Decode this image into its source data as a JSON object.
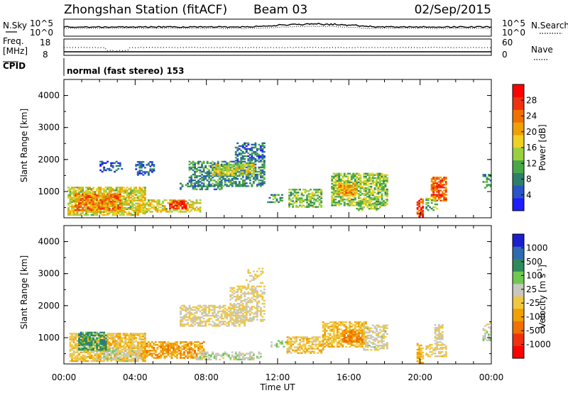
{
  "header": {
    "station": "Zhongshan Station (fitACF)",
    "beam": "Beam 03",
    "date": "02/Sep/2015"
  },
  "strip_labels": {
    "nsky": "N.Sky",
    "nsearch": "N.Search",
    "freq_line1": "Freq.",
    "freq_line2": "[MHz]",
    "nave": "Nave",
    "cpid": "CPID",
    "nsky_top": "10^5",
    "nsky_bottom": "10^0",
    "nsearch_top": "10^5",
    "nsearch_bottom": "10^0",
    "freq_top": "18",
    "freq_bottom": "8",
    "nave_top": "60",
    "nave_bottom": "0",
    "cpid_text": "normal (fast stereo) 153"
  },
  "colors": {
    "power": [
      "#1d1dff",
      "#2a55c8",
      "#2e7f6a",
      "#48a848",
      "#9ad040",
      "#f0d020",
      "#f0a000",
      "#f07000",
      "#f03010",
      "#ff0000"
    ],
    "velocity": [
      "#ff0000",
      "#f03010",
      "#f07000",
      "#f0a000",
      "#f0c840",
      "#c8c8c0",
      "#70c850",
      "#2e8a5a",
      "#2e6ab0",
      "#1d1dd0"
    ]
  },
  "chart_data": [
    {
      "type": "heatmap",
      "panel": "power",
      "ylabel": "Slant Range [km]",
      "yticks": [
        "1000",
        "2000",
        "3000",
        "4000"
      ],
      "ylim": [
        180,
        4500
      ],
      "colorbar_label": "Power [dB]",
      "colorbar_ticks": [
        "4",
        "8",
        "12",
        "16",
        "20",
        "24",
        "28"
      ],
      "colorbar_range": [
        0,
        32
      ],
      "regions": [
        {
          "t": [
            0.2,
            4.6
          ],
          "r": [
            250,
            1150
          ],
          "v": 17,
          "d": 0.75
        },
        {
          "t": [
            0.6,
            3.2
          ],
          "r": [
            400,
            900
          ],
          "v": 23,
          "d": 0.75
        },
        {
          "t": [
            4.3,
            7.6
          ],
          "r": [
            350,
            750
          ],
          "v": 17,
          "d": 0.55
        },
        {
          "t": [
            5.9,
            6.8
          ],
          "r": [
            450,
            680
          ],
          "v": 27,
          "d": 0.8
        },
        {
          "t": [
            2.0,
            3.3
          ],
          "r": [
            1600,
            1950
          ],
          "v": 4,
          "d": 0.45
        },
        {
          "t": [
            4.0,
            5.0
          ],
          "r": [
            1500,
            1950
          ],
          "v": 6,
          "d": 0.45
        },
        {
          "t": [
            7.0,
            11.2
          ],
          "r": [
            1150,
            1950
          ],
          "v": 9,
          "d": 0.55
        },
        {
          "t": [
            8.3,
            10.6
          ],
          "r": [
            1500,
            1850
          ],
          "v": 16,
          "d": 0.65
        },
        {
          "t": [
            9.6,
            11.2
          ],
          "r": [
            1950,
            2500
          ],
          "v": 7,
          "d": 0.55
        },
        {
          "t": [
            6.5,
            8.8
          ],
          "r": [
            1050,
            1250
          ],
          "v": 9,
          "d": 0.45
        },
        {
          "t": [
            11.4,
            12.2
          ],
          "r": [
            650,
            900
          ],
          "v": 10,
          "d": 0.4
        },
        {
          "t": [
            12.6,
            14.4
          ],
          "r": [
            500,
            1050
          ],
          "v": 13,
          "d": 0.6
        },
        {
          "t": [
            15.0,
            18.2
          ],
          "r": [
            550,
            1550
          ],
          "v": 14,
          "d": 0.65
        },
        {
          "t": [
            15.4,
            16.4
          ],
          "r": [
            850,
            1250
          ],
          "v": 21,
          "d": 0.75
        },
        {
          "t": [
            16.4,
            17.8
          ],
          "r": [
            400,
            700
          ],
          "v": 14,
          "d": 0.5
        },
        {
          "t": [
            19.8,
            20.2
          ],
          "r": [
            200,
            750
          ],
          "v": 26,
          "d": 0.7
        },
        {
          "t": [
            20.6,
            21.5
          ],
          "r": [
            700,
            1450
          ],
          "v": 25,
          "d": 0.75
        },
        {
          "t": [
            20.3,
            21.0
          ],
          "r": [
            400,
            800
          ],
          "v": 12,
          "d": 0.5
        },
        {
          "t": [
            23.5,
            24.0
          ],
          "r": [
            1100,
            1550
          ],
          "v": 10,
          "d": 0.5
        }
      ]
    },
    {
      "type": "heatmap",
      "panel": "velocity",
      "ylabel": "Slant Range [km]",
      "yticks": [
        "1000",
        "2000",
        "3000",
        "4000"
      ],
      "ylim": [
        180,
        4500
      ],
      "colorbar_label": "Velocity [m s^-1]",
      "colorbar_ticks": [
        "1000",
        "500",
        "100",
        "25",
        "-25",
        "-100",
        "-500",
        "-1000"
      ],
      "colorbar_range": [
        -1500,
        1500
      ],
      "regions": [
        {
          "t": [
            0.3,
            4.6
          ],
          "r": [
            250,
            1150
          ],
          "v": -200,
          "d": 0.75
        },
        {
          "t": [
            0.8,
            2.4
          ],
          "r": [
            600,
            1150
          ],
          "v": 700,
          "d": 0.7
        },
        {
          "t": [
            2.2,
            3.2
          ],
          "r": [
            300,
            650
          ],
          "v": 300,
          "d": 0.6
        },
        {
          "t": [
            3.3,
            4.2
          ],
          "r": [
            250,
            650
          ],
          "v": 80,
          "d": 0.55
        },
        {
          "t": [
            4.3,
            7.8
          ],
          "r": [
            350,
            850
          ],
          "v": -450,
          "d": 0.65
        },
        {
          "t": [
            7.2,
            11.0
          ],
          "r": [
            300,
            560
          ],
          "v": 200,
          "d": 0.5
        },
        {
          "t": [
            6.5,
            10.2
          ],
          "r": [
            1350,
            2000
          ],
          "v": 0,
          "d": 0.55
        },
        {
          "t": [
            9.3,
            11.2
          ],
          "r": [
            1500,
            2600
          ],
          "v": 0,
          "d": 0.5
        },
        {
          "t": [
            10.2,
            11.1
          ],
          "r": [
            2600,
            3150
          ],
          "v": 0,
          "d": 0.25
        },
        {
          "t": [
            11.5,
            12.4
          ],
          "r": [
            700,
            900
          ],
          "v": 300,
          "d": 0.4
        },
        {
          "t": [
            12.5,
            14.5
          ],
          "r": [
            500,
            1000
          ],
          "v": -180,
          "d": 0.6
        },
        {
          "t": [
            14.5,
            17.0
          ],
          "r": [
            700,
            1500
          ],
          "v": -250,
          "d": 0.6
        },
        {
          "t": [
            15.6,
            16.8
          ],
          "r": [
            850,
            1250
          ],
          "v": -600,
          "d": 0.7
        },
        {
          "t": [
            16.8,
            18.2
          ],
          "r": [
            600,
            1400
          ],
          "v": 60,
          "d": 0.5
        },
        {
          "t": [
            19.8,
            20.2
          ],
          "r": [
            200,
            800
          ],
          "v": -300,
          "d": 0.6
        },
        {
          "t": [
            20.8,
            21.3
          ],
          "r": [
            750,
            1400
          ],
          "v": 40,
          "d": 0.7
        },
        {
          "t": [
            20.3,
            21.5
          ],
          "r": [
            400,
            800
          ],
          "v": -60,
          "d": 0.5
        },
        {
          "t": [
            23.5,
            24.0
          ],
          "r": [
            900,
            1450
          ],
          "v": 200,
          "d": 0.5
        }
      ]
    }
  ],
  "x_axis": {
    "tick_labels": [
      "00:00",
      "04:00",
      "08:00",
      "12:00",
      "16:00",
      "20:00",
      "00:00"
    ],
    "label": "Time UT"
  }
}
